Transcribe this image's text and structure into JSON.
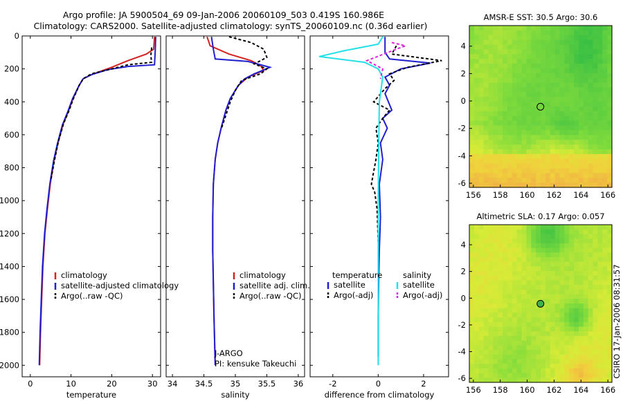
{
  "header": {
    "line1": "Argo profile: JA 5900504_69 09-Jan-2006 20060109_503 0.419S 160.986E",
    "line2": "Climatology: CARS2000. Satellite-adjusted climatology: synTS_20060109.nc (0.36d earlier)"
  },
  "side_label": "CSIRO 17-Jan-2006 08:31:57",
  "colors": {
    "climatology": "#d62020",
    "satellite": "#1f1fd0",
    "argo": "#000000",
    "salinity_sat": "#22e0e8",
    "salinity_argo": "#e020e0"
  },
  "chart_data": [
    {
      "id": "temperature",
      "type": "line",
      "xlabel": "temperature",
      "ylabel": "",
      "xlim": [
        -2,
        32
      ],
      "ylim": [
        2070,
        0
      ],
      "xticks": [
        0,
        10,
        20,
        30
      ],
      "xtick_labels": [
        "0",
        "10",
        "20",
        "30"
      ],
      "yticks": [
        0,
        200,
        400,
        600,
        800,
        1000,
        1200,
        1400,
        1600,
        1800,
        2000
      ],
      "ytick_labels": [
        "0",
        "200",
        "400",
        "600",
        "800",
        "1000",
        "1200",
        "1400",
        "1600",
        "1800",
        "2000"
      ],
      "legend": [
        "climatology",
        "satellite-adjusted climatology",
        "Argo(..raw -QC)"
      ],
      "series": [
        {
          "name": "climatology",
          "color": "#d62020",
          "dash": "",
          "x": [
            30.5,
            30.3,
            28.5,
            24,
            20,
            15.5,
            13,
            12,
            10.5,
            9.3,
            8,
            6.8,
            5.8,
            4.9,
            4.2,
            3.6,
            3.1,
            2.8,
            2.5,
            2.3
          ],
          "y": [
            5,
            80,
            110,
            150,
            190,
            230,
            260,
            300,
            380,
            460,
            540,
            650,
            760,
            900,
            1050,
            1200,
            1400,
            1600,
            1800,
            2000
          ]
        },
        {
          "name": "satellite-adjusted climatology",
          "color": "#1f1fd0",
          "dash": "",
          "x": [
            30.8,
            30.7,
            30.5,
            24,
            19,
            15,
            13,
            12,
            10.4,
            9.2,
            7.9,
            6.7,
            5.7,
            4.8,
            4.1,
            3.5,
            3.0,
            2.7,
            2.4,
            2.2
          ],
          "y": [
            5,
            80,
            175,
            185,
            205,
            235,
            260,
            300,
            380,
            460,
            540,
            650,
            760,
            900,
            1050,
            1200,
            1400,
            1600,
            1800,
            2000
          ]
        },
        {
          "name": "Argo(..raw -QC)",
          "color": "#000000",
          "dash": "4,3",
          "x": [
            29.8,
            29.6,
            29.8,
            24,
            20,
            15,
            13,
            12,
            10.6,
            9.4,
            8.2,
            6.9,
            5.9,
            5.0
          ],
          "y": [
            70,
            120,
            160,
            175,
            200,
            230,
            260,
            300,
            380,
            460,
            530,
            640,
            760,
            880
          ]
        }
      ]
    },
    {
      "id": "salinity",
      "type": "line",
      "xlabel": "salinity",
      "ylabel": "",
      "xlim": [
        33.9,
        36.1
      ],
      "ylim": [
        2070,
        0
      ],
      "xticks": [
        34,
        34.5,
        35,
        35.5,
        36
      ],
      "xtick_labels": [
        "34",
        "34.5",
        "35",
        "35.5",
        "36"
      ],
      "legend": [
        "climatology",
        "satellite adj. clim.",
        "Argo(..raw -QC)"
      ],
      "annotation": [
        "J-ARGO",
        "PI: kensuke Takeuchi"
      ],
      "series": [
        {
          "name": "climatology",
          "color": "#d62020",
          "dash": "",
          "x": [
            34.55,
            34.6,
            34.9,
            35.25,
            35.4,
            35.45,
            35.2,
            35.05,
            34.92,
            34.85,
            34.78,
            34.72,
            34.68,
            34.65,
            34.64,
            34.64,
            34.65,
            34.66,
            34.67,
            34.68
          ],
          "y": [
            5,
            60,
            110,
            150,
            180,
            210,
            250,
            300,
            380,
            450,
            550,
            650,
            750,
            900,
            1100,
            1300,
            1500,
            1700,
            1850,
            2000
          ]
        },
        {
          "name": "satellite adj. clim.",
          "color": "#1f1fd0",
          "dash": "",
          "x": [
            34.62,
            34.65,
            34.68,
            35.2,
            35.55,
            35.3,
            35.15,
            35.05,
            34.92,
            34.85,
            34.78,
            34.72,
            34.68,
            34.65,
            34.64,
            34.64,
            34.65,
            34.66,
            34.67,
            34.68
          ],
          "y": [
            5,
            80,
            140,
            155,
            190,
            230,
            260,
            300,
            380,
            450,
            550,
            650,
            750,
            900,
            1100,
            1300,
            1500,
            1700,
            1850,
            2000
          ]
        },
        {
          "name": "Argo(..raw -QC)",
          "color": "#000000",
          "dash": "4,3",
          "x": [
            34.9,
            35.25,
            35.45,
            35.5,
            35.3,
            35.5,
            35.4,
            35.1,
            35.0,
            34.92,
            34.85,
            34.78
          ],
          "y": [
            5,
            40,
            80,
            130,
            170,
            200,
            230,
            270,
            330,
            400,
            480,
            560
          ]
        }
      ]
    },
    {
      "id": "difference",
      "type": "line",
      "xlabel": "difference from climatology",
      "ylabel": "",
      "xlim": [
        -3,
        3.1
      ],
      "ylim": [
        2070,
        0
      ],
      "xticks": [
        -2,
        0,
        2
      ],
      "xtick_labels": [
        "-2",
        "0",
        "2"
      ],
      "legend_left_title": "temperature",
      "legend_right_title": "salinity",
      "legend_left": [
        "satellite",
        "Argo(-adj)"
      ],
      "legend_right": [
        "satellite",
        "Argo(-adj)"
      ],
      "series": [
        {
          "name": "temperature satellite",
          "color": "#1f1fd0",
          "dash": "",
          "x": [
            0.3,
            0.3,
            0.5,
            2.3,
            1.0,
            0.3,
            0.5,
            0.3,
            0.6,
            0.2,
            0.4,
            0.1,
            0.2,
            0.05,
            0.1,
            0.05,
            0.02,
            0.0,
            0.0
          ],
          "y": [
            5,
            100,
            140,
            165,
            200,
            250,
            300,
            350,
            450,
            500,
            560,
            650,
            750,
            900,
            1100,
            1300,
            1500,
            1700,
            1950
          ]
        },
        {
          "name": "temperature Argo(-adj)",
          "color": "#000000",
          "dash": "4,3",
          "x": [
            0.8,
            0.6,
            2.8,
            1.3,
            0.5,
            0.7,
            0.3,
            -0.2,
            0.5,
            0.2,
            -0.1,
            0.0,
            -0.1,
            -0.3,
            -0.15,
            -0.05,
            0.0
          ],
          "y": [
            60,
            110,
            150,
            190,
            230,
            270,
            320,
            400,
            450,
            500,
            560,
            650,
            750,
            900,
            950,
            1050,
            1250
          ]
        },
        {
          "name": "salinity satellite",
          "color": "#22e0e8",
          "dash": "",
          "x": [
            0.2,
            0.0,
            -1.5,
            -2.6,
            -0.6,
            0.0,
            0.2,
            0.05,
            0.02,
            0.0,
            0.0,
            0.0
          ],
          "y": [
            5,
            50,
            90,
            125,
            160,
            200,
            250,
            400,
            700,
            1000,
            1500,
            2000
          ]
        },
        {
          "name": "salinity Argo(-adj)",
          "color": "#e020e0",
          "dash": "4,3",
          "x": [
            0.6,
            1.2,
            0.8,
            -0.5,
            0.2,
            0.1
          ],
          "y": [
            40,
            60,
            80,
            150,
            200,
            260
          ]
        }
      ]
    },
    {
      "id": "sst_map",
      "type": "heatmap",
      "title": "AMSR-E SST: 30.5 Argo: 30.6",
      "xlim": [
        155.7,
        166.3
      ],
      "ylim": [
        -6.3,
        5.5
      ],
      "xticks": [
        156,
        158,
        160,
        162,
        164,
        166
      ],
      "xtick_labels": [
        "156",
        "158",
        "160",
        "162",
        "164",
        "166"
      ],
      "yticks": [
        -6,
        -4,
        -2,
        0,
        2,
        4
      ],
      "ytick_labels": [
        "-6",
        "-4",
        "-2",
        "0",
        "2",
        "4"
      ],
      "float_location": [
        160.986,
        -0.419
      ]
    },
    {
      "id": "sla_map",
      "type": "heatmap",
      "title": "Altimetric SLA: 0.17 Argo: 0.057",
      "xlim": [
        155.7,
        166.3
      ],
      "ylim": [
        -6.3,
        5.5
      ],
      "xticks": [
        156,
        158,
        160,
        162,
        164,
        166
      ],
      "xtick_labels": [
        "156",
        "158",
        "160",
        "162",
        "164",
        "166"
      ],
      "yticks": [
        -6,
        -4,
        -2,
        0,
        2,
        4
      ],
      "ytick_labels": [
        "-6",
        "-4",
        "-2",
        "0",
        "2",
        "4"
      ],
      "float_location": [
        160.986,
        -0.419
      ]
    }
  ]
}
